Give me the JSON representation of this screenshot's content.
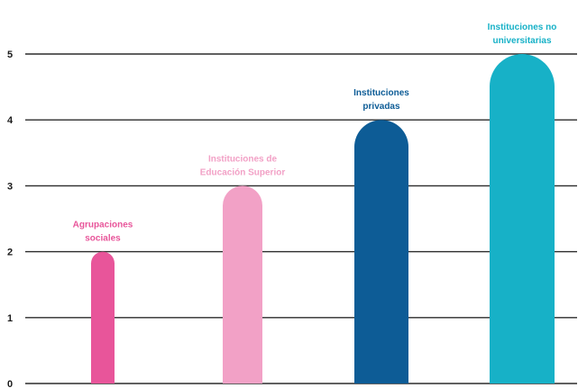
{
  "chart_data": {
    "type": "bar",
    "categories": [
      "Agrupaciones sociales",
      "Instituciones de Educación Superior",
      "Instituciones privadas",
      "Instituciones no universitarias"
    ],
    "label_lines": [
      [
        "Agrupaciones",
        "sociales"
      ],
      [
        "Instituciones de",
        "Educación Superior"
      ],
      [
        "Instituciones",
        "privadas"
      ],
      [
        "Instituciones no",
        "universitarias"
      ]
    ],
    "values": [
      2,
      3,
      4,
      5
    ],
    "ylim": [
      0,
      5
    ],
    "yticks": [
      "0",
      "1",
      "2",
      "3",
      "4",
      "5"
    ],
    "grid": true,
    "colors": [
      "#e8559a",
      "#f2a1c6",
      "#0d5c96",
      "#17b1c7"
    ],
    "label_colors": [
      "#e8559a",
      "#f2a1c6",
      "#0d5c96",
      "#17b1c7"
    ]
  }
}
